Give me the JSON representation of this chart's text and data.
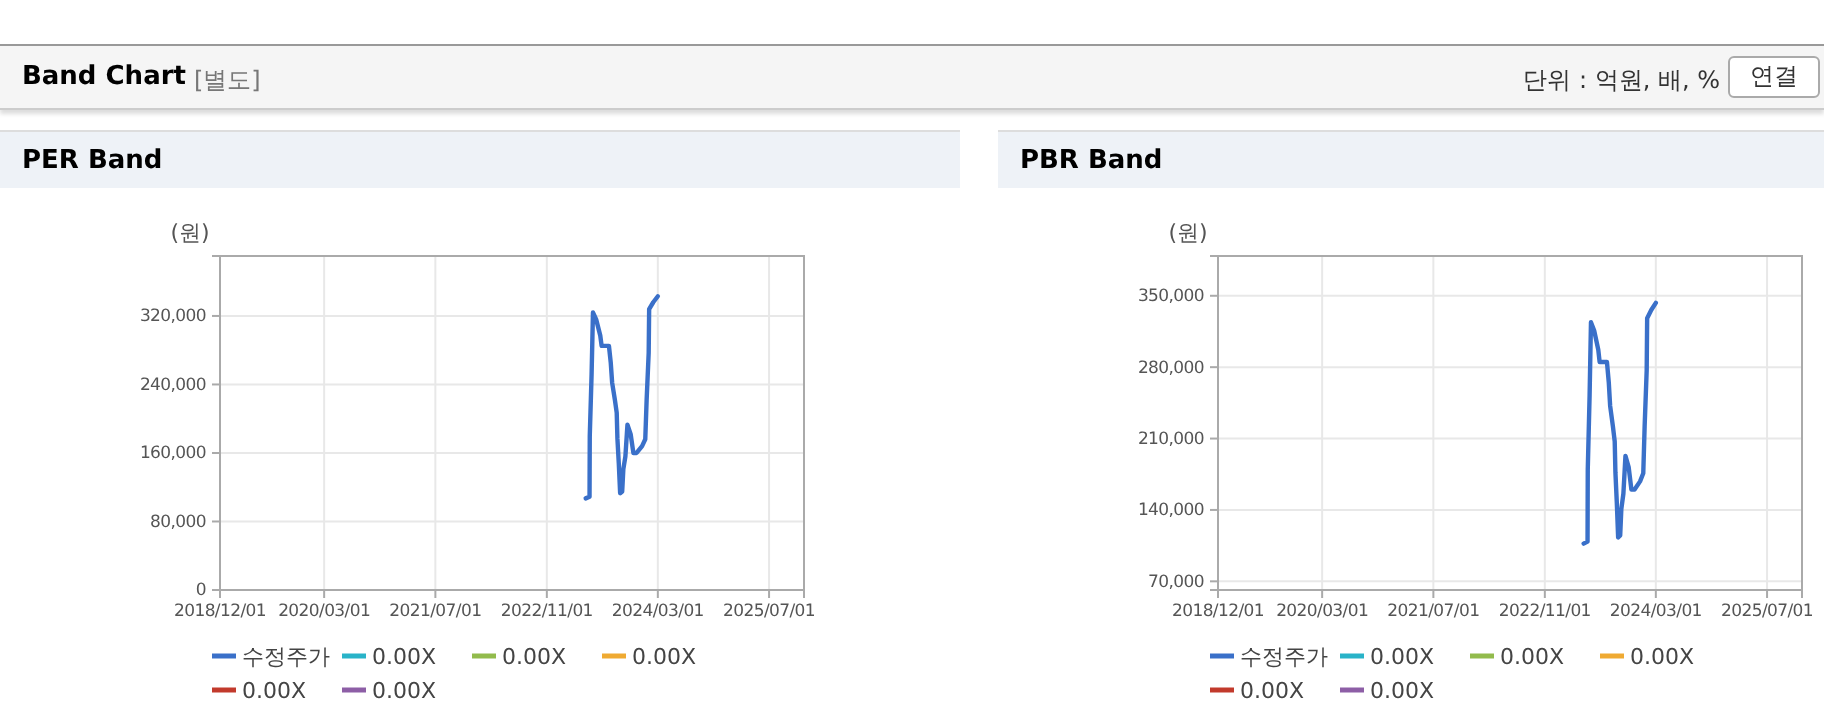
{
  "chart_data": [
    {
      "type": "other",
      "title": "Band Chart",
      "annotations": [
        "[별도]",
        "단위 : 억원, 배, %",
        "연결"
      ]
    },
    {
      "type": "line",
      "title": "PER Band",
      "ylabel": "(원)",
      "x": [
        "2023-04-20",
        "2023-05-07",
        "2023-05-08",
        "2023-05-16",
        "2023-05-22",
        "2023-06-05",
        "2023-06-23",
        "2023-06-29",
        "2023-07-31",
        "2023-08-08",
        "2023-08-14",
        "2023-08-26",
        "2023-09-03",
        "2023-09-06",
        "2023-09-12",
        "2023-09-18",
        "2023-09-27",
        "2023-10-02",
        "2023-10-11",
        "2023-10-20",
        "2023-11-03",
        "2023-11-15",
        "2023-11-29",
        "2023-12-23",
        "2024-01-06",
        "2024-01-12",
        "2024-01-21",
        "2024-01-23",
        "2024-02-10",
        "2024-03-01"
      ],
      "series": [
        {
          "name": "수정주가",
          "color": "#3a70c9",
          "values": [
            107000,
            109000,
            180000,
            252000,
            324000,
            316000,
            297000,
            285000,
            285000,
            265000,
            242000,
            222000,
            207000,
            177000,
            148000,
            113000,
            115000,
            141000,
            156000,
            193000,
            182000,
            160000,
            160000,
            168000,
            176000,
            222000,
            277000,
            328000,
            336000,
            343000
          ]
        },
        {
          "name": "0.00X",
          "color": "#29b3c8",
          "values": [
            null,
            null,
            null,
            null,
            null,
            null,
            null,
            null,
            null,
            null,
            null,
            null,
            null,
            null,
            null,
            null,
            null,
            null,
            null,
            null,
            null,
            null,
            null,
            null,
            null,
            null,
            null,
            null,
            null,
            null
          ]
        },
        {
          "name": "0.00X",
          "color": "#92bb4c",
          "values": [
            null,
            null,
            null,
            null,
            null,
            null,
            null,
            null,
            null,
            null,
            null,
            null,
            null,
            null,
            null,
            null,
            null,
            null,
            null,
            null,
            null,
            null,
            null,
            null,
            null,
            null,
            null,
            null,
            null,
            null
          ]
        },
        {
          "name": "0.00X",
          "color": "#efaa32",
          "values": [
            null,
            null,
            null,
            null,
            null,
            null,
            null,
            null,
            null,
            null,
            null,
            null,
            null,
            null,
            null,
            null,
            null,
            null,
            null,
            null,
            null,
            null,
            null,
            null,
            null,
            null,
            null,
            null,
            null,
            null
          ]
        },
        {
          "name": "0.00X",
          "color": "#c23a2c",
          "values": [
            null,
            null,
            null,
            null,
            null,
            null,
            null,
            null,
            null,
            null,
            null,
            null,
            null,
            null,
            null,
            null,
            null,
            null,
            null,
            null,
            null,
            null,
            null,
            null,
            null,
            null,
            null,
            null,
            null,
            null
          ]
        },
        {
          "name": "0.00X",
          "color": "#8d5ea6",
          "values": [
            null,
            null,
            null,
            null,
            null,
            null,
            null,
            null,
            null,
            null,
            null,
            null,
            null,
            null,
            null,
            null,
            null,
            null,
            null,
            null,
            null,
            null,
            null,
            null,
            null,
            null,
            null,
            null,
            null,
            null
          ]
        }
      ],
      "xlim": [
        "2018-12-01",
        "2025-12-01"
      ],
      "xticks": [
        {
          "value": "2018-12-01",
          "label": "2018/12/01"
        },
        {
          "value": "2020-03-01",
          "label": "2020/03/01"
        },
        {
          "value": "2021-07-01",
          "label": "2021/07/01"
        },
        {
          "value": "2022-11-01",
          "label": "2022/11/01"
        },
        {
          "value": "2024-03-01",
          "label": "2024/03/01"
        },
        {
          "value": "2025-07-01",
          "label": "2025/07/01"
        }
      ],
      "ylim": [
        0,
        390000
      ],
      "yticks": [
        {
          "value": 0,
          "label": "0"
        },
        {
          "value": 80000,
          "label": "80,000"
        },
        {
          "value": 160000,
          "label": "160,000"
        },
        {
          "value": 240000,
          "label": "240,000"
        },
        {
          "value": 320000,
          "label": "320,000"
        }
      ],
      "grid": true,
      "legend": "bottom",
      "marker": "none",
      "line_style": "solid"
    },
    {
      "type": "line",
      "title": "PBR Band",
      "ylabel": "(원)",
      "x": [
        "2023-04-20",
        "2023-05-07",
        "2023-05-08",
        "2023-05-16",
        "2023-05-22",
        "2023-06-05",
        "2023-06-23",
        "2023-06-29",
        "2023-07-31",
        "2023-08-08",
        "2023-08-14",
        "2023-08-26",
        "2023-09-03",
        "2023-09-06",
        "2023-09-12",
        "2023-09-18",
        "2023-09-27",
        "2023-10-02",
        "2023-10-11",
        "2023-10-20",
        "2023-11-03",
        "2023-11-15",
        "2023-11-29",
        "2023-12-23",
        "2024-01-06",
        "2024-01-12",
        "2024-01-21",
        "2024-01-23",
        "2024-02-10",
        "2024-03-01"
      ],
      "series": [
        {
          "name": "수정주가",
          "color": "#3a70c9",
          "values": [
            107000,
            109000,
            180000,
            252000,
            324000,
            316000,
            297000,
            285000,
            285000,
            265000,
            242000,
            222000,
            207000,
            177000,
            148000,
            113000,
            115000,
            141000,
            156000,
            193000,
            182000,
            160000,
            160000,
            168000,
            176000,
            222000,
            277000,
            328000,
            336000,
            343000
          ]
        },
        {
          "name": "0.00X",
          "color": "#29b3c8",
          "values": [
            null,
            null,
            null,
            null,
            null,
            null,
            null,
            null,
            null,
            null,
            null,
            null,
            null,
            null,
            null,
            null,
            null,
            null,
            null,
            null,
            null,
            null,
            null,
            null,
            null,
            null,
            null,
            null,
            null,
            null
          ]
        },
        {
          "name": "0.00X",
          "color": "#92bb4c",
          "values": [
            null,
            null,
            null,
            null,
            null,
            null,
            null,
            null,
            null,
            null,
            null,
            null,
            null,
            null,
            null,
            null,
            null,
            null,
            null,
            null,
            null,
            null,
            null,
            null,
            null,
            null,
            null,
            null,
            null,
            null
          ]
        },
        {
          "name": "0.00X",
          "color": "#efaa32",
          "values": [
            null,
            null,
            null,
            null,
            null,
            null,
            null,
            null,
            null,
            null,
            null,
            null,
            null,
            null,
            null,
            null,
            null,
            null,
            null,
            null,
            null,
            null,
            null,
            null,
            null,
            null,
            null,
            null,
            null,
            null
          ]
        },
        {
          "name": "0.00X",
          "color": "#c23a2c",
          "values": [
            null,
            null,
            null,
            null,
            null,
            null,
            null,
            null,
            null,
            null,
            null,
            null,
            null,
            null,
            null,
            null,
            null,
            null,
            null,
            null,
            null,
            null,
            null,
            null,
            null,
            null,
            null,
            null,
            null,
            null
          ]
        },
        {
          "name": "0.00X",
          "color": "#8d5ea6",
          "values": [
            null,
            null,
            null,
            null,
            null,
            null,
            null,
            null,
            null,
            null,
            null,
            null,
            null,
            null,
            null,
            null,
            null,
            null,
            null,
            null,
            null,
            null,
            null,
            null,
            null,
            null,
            null,
            null,
            null,
            null
          ]
        }
      ],
      "xlim": [
        "2018-12-01",
        "2025-12-01"
      ],
      "xticks": [
        {
          "value": "2018-12-01",
          "label": "2018/12/01"
        },
        {
          "value": "2020-03-01",
          "label": "2020/03/01"
        },
        {
          "value": "2021-07-01",
          "label": "2021/07/01"
        },
        {
          "value": "2022-11-01",
          "label": "2022/11/01"
        },
        {
          "value": "2024-03-01",
          "label": "2024/03/01"
        },
        {
          "value": "2025-07-01",
          "label": "2025/07/01"
        }
      ],
      "ylim": [
        61500,
        389000
      ],
      "yticks": [
        {
          "value": 70000,
          "label": "70,000"
        },
        {
          "value": 140000,
          "label": "140,000"
        },
        {
          "value": 210000,
          "label": "210,000"
        },
        {
          "value": 280000,
          "label": "280,000"
        },
        {
          "value": 350000,
          "label": "350,000"
        }
      ],
      "grid": true,
      "legend": "bottom",
      "marker": "none",
      "line_style": "solid"
    }
  ]
}
